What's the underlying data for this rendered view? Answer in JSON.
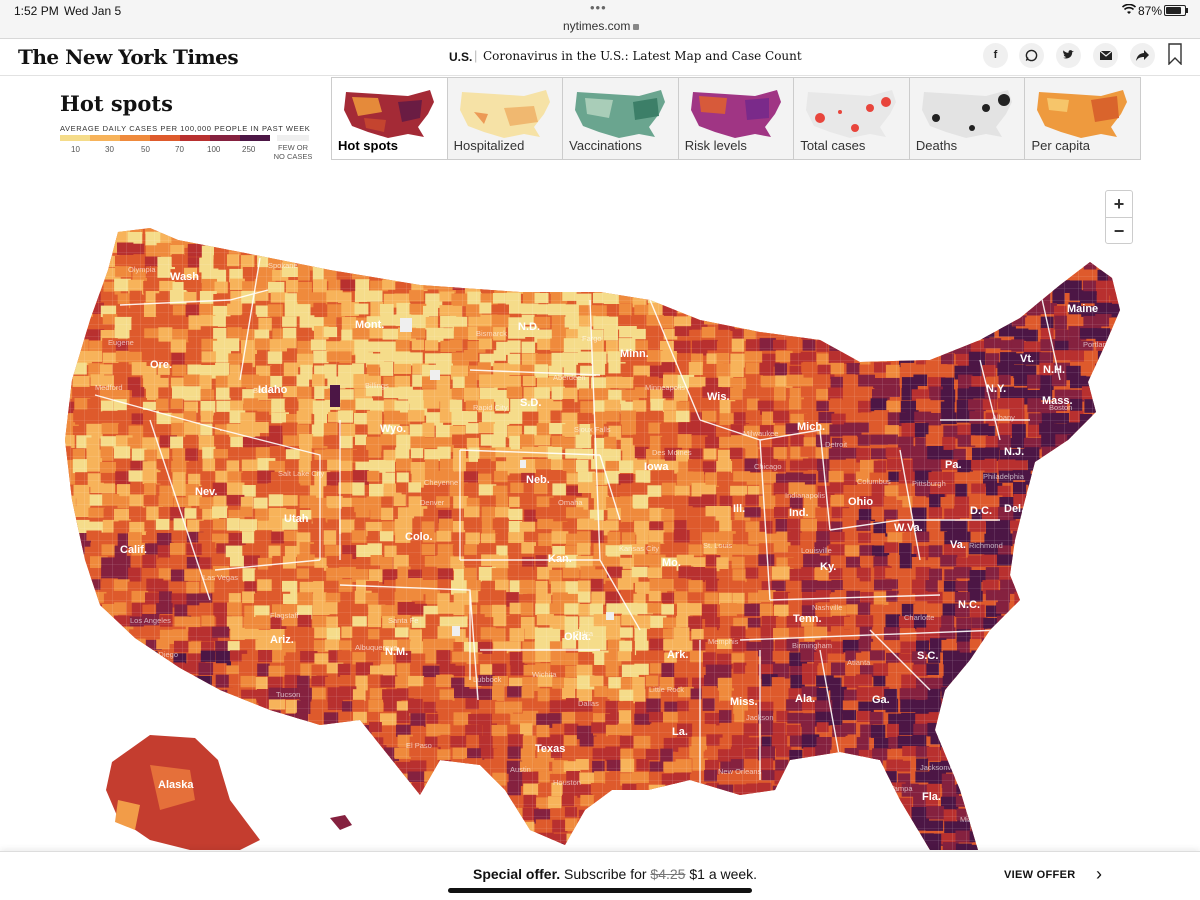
{
  "status_bar": {
    "time": "1:52 PM",
    "date": "Wed Jan 5",
    "url": "nytimes.com",
    "battery": "87%"
  },
  "header": {
    "logo": "The New York Times",
    "section": "U.S.",
    "headline": "Coronavirus in the U.S.: Latest Map and Case Count",
    "share_icons": [
      "facebook-icon",
      "whatsapp-icon",
      "twitter-icon",
      "email-icon",
      "share-icon",
      "bookmark-icon"
    ]
  },
  "legend": {
    "title": "Hot spots",
    "subtitle": "AVERAGE DAILY CASES PER 100,000 PEOPLE IN PAST WEEK",
    "ticks": [
      "10",
      "30",
      "50",
      "70",
      "100",
      "250"
    ],
    "few_label_1": "FEW OR",
    "few_label_2": "NO CASES",
    "colors": [
      "#f5dc8a",
      "#f7b35a",
      "#ef8a3c",
      "#de5a2c",
      "#b8302f",
      "#85213f",
      "#4c1645"
    ],
    "few_color": "#efefef"
  },
  "tabs": [
    {
      "label": "Hot spots",
      "active": true
    },
    {
      "label": "Hospitalized",
      "active": false
    },
    {
      "label": "Vaccinations",
      "active": false
    },
    {
      "label": "Risk levels",
      "active": false
    },
    {
      "label": "Total cases",
      "active": false
    },
    {
      "label": "Deaths",
      "active": false
    },
    {
      "label": "Per capita",
      "active": false
    }
  ],
  "zoom": {
    "in": "+",
    "out": "−"
  },
  "map": {
    "state_labels": [
      "Wash",
      "Ore.",
      "Calif.",
      "Nev.",
      "Idaho",
      "Mont.",
      "Wyo.",
      "Utah",
      "Colo.",
      "Ariz.",
      "N.M.",
      "N.D.",
      "S.D.",
      "Neb.",
      "Kan.",
      "Okla.",
      "Texas",
      "Minn.",
      "Iowa",
      "Mo.",
      "Ark.",
      "La.",
      "Wis.",
      "Ill.",
      "Mich.",
      "Ind.",
      "Ohio",
      "Ky.",
      "Tenn.",
      "Miss.",
      "Ala.",
      "Ga.",
      "Fla.",
      "S.C.",
      "N.C.",
      "Va.",
      "W.Va.",
      "Pa.",
      "N.Y.",
      "Vt.",
      "N.H.",
      "Maine",
      "Mass.",
      "N.J.",
      "Del.",
      "D.C.",
      "Alaska"
    ],
    "city_labels": [
      "Olympia",
      "Spokane",
      "Eugene",
      "Medford",
      "Boise",
      "Salt Lake City",
      "Las Vegas",
      "Los Angeles",
      "San Diego",
      "Flagstaff",
      "Tucson",
      "Santa Fe",
      "Albuquerque",
      "Denver",
      "Cheyenne",
      "Billings",
      "Sioux Falls",
      "Omaha",
      "Wichita",
      "Tulsa",
      "Dallas",
      "Austin",
      "Houston",
      "San Antonio",
      "Lubbock",
      "El Paso",
      "Little Rock",
      "Memphis",
      "Nashville",
      "Atlanta",
      "Charlotte",
      "Richmond",
      "Philadelphia",
      "Pittsburgh",
      "Chicago",
      "Detroit",
      "Milwaukee",
      "Minneapolis",
      "Des Moines",
      "Kansas City",
      "St. Louis",
      "Indianapolis",
      "Columbus",
      "Louisville",
      "Birmingham",
      "Jacksonville",
      "Tampa",
      "Miami",
      "New Orleans",
      "Jackson",
      "Boston",
      "Albany",
      "Portland",
      "Fargo",
      "Bismarck",
      "Rapid City",
      "Aberdeen"
    ]
  },
  "offer": {
    "bold": "Special offer.",
    "text": "Subscribe for",
    "old_price": "$4.25",
    "new_price": "$1 a week.",
    "cta": "VIEW OFFER"
  }
}
